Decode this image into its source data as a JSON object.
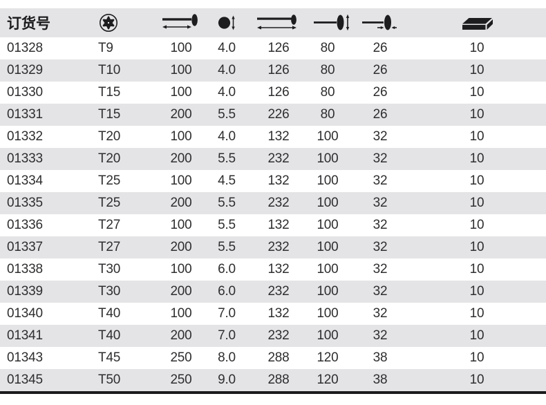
{
  "table": {
    "header": {
      "order_label": "订货号",
      "icons": [
        "torx-icon",
        "blade-length-icon",
        "blade-diameter-icon",
        "total-length-icon",
        "handle-length-icon",
        "handle-diameter-icon",
        "packaging-icon"
      ]
    },
    "columns": [
      "order_no",
      "torx_size",
      "blade_length",
      "blade_diameter",
      "total_length",
      "handle_length",
      "handle_diameter",
      "pack_qty"
    ],
    "rows": [
      [
        "01328",
        "T9",
        "100",
        "4.0",
        "126",
        "80",
        "26",
        "10"
      ],
      [
        "01329",
        "T10",
        "100",
        "4.0",
        "126",
        "80",
        "26",
        "10"
      ],
      [
        "01330",
        "T15",
        "100",
        "4.0",
        "126",
        "80",
        "26",
        "10"
      ],
      [
        "01331",
        "T15",
        "200",
        "5.5",
        "226",
        "80",
        "26",
        "10"
      ],
      [
        "01332",
        "T20",
        "100",
        "4.0",
        "132",
        "100",
        "32",
        "10"
      ],
      [
        "01333",
        "T20",
        "200",
        "5.5",
        "232",
        "100",
        "32",
        "10"
      ],
      [
        "01334",
        "T25",
        "100",
        "4.5",
        "132",
        "100",
        "32",
        "10"
      ],
      [
        "01335",
        "T25",
        "200",
        "5.5",
        "232",
        "100",
        "32",
        "10"
      ],
      [
        "01336",
        "T27",
        "100",
        "5.5",
        "132",
        "100",
        "32",
        "10"
      ],
      [
        "01337",
        "T27",
        "200",
        "5.5",
        "232",
        "100",
        "32",
        "10"
      ],
      [
        "01338",
        "T30",
        "100",
        "6.0",
        "132",
        "100",
        "32",
        "10"
      ],
      [
        "01339",
        "T30",
        "200",
        "6.0",
        "232",
        "100",
        "32",
        "10"
      ],
      [
        "01340",
        "T40",
        "100",
        "7.0",
        "132",
        "100",
        "32",
        "10"
      ],
      [
        "01341",
        "T40",
        "200",
        "7.0",
        "232",
        "100",
        "32",
        "10"
      ],
      [
        "01343",
        "T45",
        "250",
        "8.0",
        "288",
        "120",
        "38",
        "10"
      ],
      [
        "01345",
        "T50",
        "250",
        "9.0",
        "288",
        "120",
        "38",
        "10"
      ]
    ]
  },
  "colors": {
    "header_bg": "#e4e4e6",
    "row_alt_bg": "#e4e4e6",
    "text": "#2e2e30",
    "icon": "#1d1d1f",
    "bottom_rule": "#1b1b1d"
  }
}
